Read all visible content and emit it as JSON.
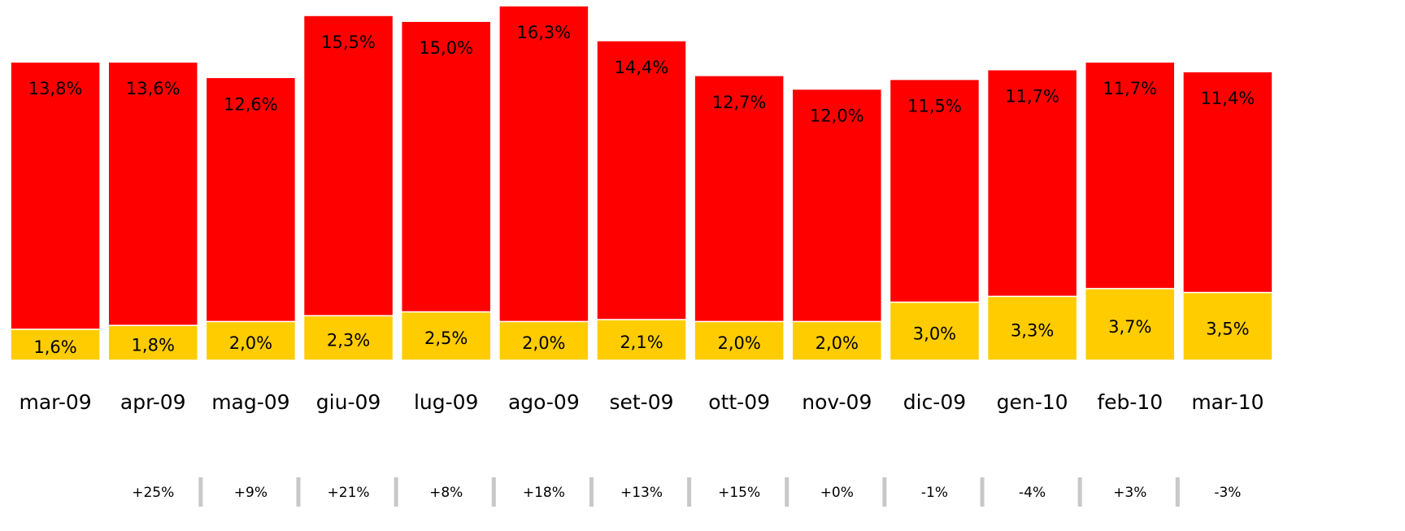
{
  "chart_data": {
    "type": "stacked_bar",
    "categories": [
      "mar-09",
      "apr-09",
      "mag-09",
      "giu-09",
      "lug-09",
      "ago-09",
      "set-09",
      "ott-09",
      "nov-09",
      "dic-09",
      "gen-10",
      "feb-10",
      "mar-10"
    ],
    "series": [
      {
        "color": "#ffcc00",
        "values": [
          1.6,
          1.8,
          2.0,
          2.3,
          2.5,
          2.0,
          2.1,
          2.0,
          2.0,
          3.0,
          3.3,
          3.7,
          3.5
        ],
        "value_labels": [
          "1,6%",
          "1,8%",
          "2,0%",
          "2,3%",
          "2,5%",
          "2,0%",
          "2,1%",
          "2,0%",
          "2,0%",
          "3,0%",
          "3,3%",
          "3,7%",
          "3,5%"
        ]
      },
      {
        "color": "#ff0000",
        "values": [
          13.8,
          13.6,
          12.6,
          15.5,
          15.0,
          16.3,
          14.4,
          12.7,
          12.0,
          11.5,
          11.7,
          11.7,
          11.4
        ],
        "value_labels": [
          "13,8%",
          "13,6%",
          "12,6%",
          "15,5%",
          "15,0%",
          "16,3%",
          "14,4%",
          "12,7%",
          "12,0%",
          "11,5%",
          "11,7%",
          "11,7%",
          "11,4%"
        ]
      }
    ],
    "change_labels": [
      null,
      "+25%",
      "+9%",
      "+21%",
      "+8%",
      "+18%",
      "+13%",
      "+15%",
      "+0%",
      "-1%",
      "-4%",
      "+3%",
      "-3%"
    ],
    "ylim": [
      0,
      18.6
    ]
  }
}
